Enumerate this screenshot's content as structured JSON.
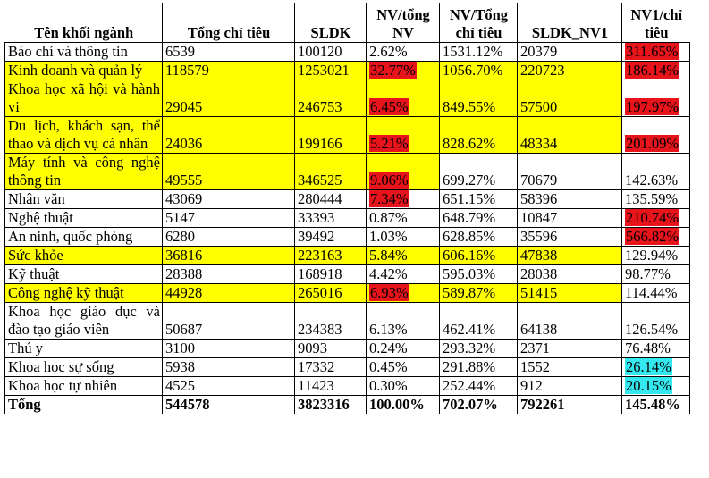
{
  "headers": [
    "Tên khối ngành",
    "Tổng chỉ tiêu",
    "SLDK",
    "NV/tổng NV",
    "NV/Tổng chỉ tiêu",
    "SLDK_NV1",
    "NV1/chỉ tiêu"
  ],
  "rows": [
    {
      "cells": [
        "Báo chí và thông tin",
        "6539",
        "100120",
        "2.62%",
        "1531.12%",
        "20379",
        "311.65%"
      ],
      "bg": "",
      "hl": {
        "6": "red"
      }
    },
    {
      "cells": [
        "Kinh doanh và quản lý",
        "118579",
        "1253021",
        "32.77%",
        "1056.70%",
        "220723",
        "186.14%"
      ],
      "bg": "yellow",
      "hl": {
        "3": "red",
        "6": "red"
      }
    },
    {
      "cells": [
        "Khoa học xã hội và hành vi",
        "29045",
        "246753",
        "6.45%",
        "849.55%",
        "57500",
        "197.97%"
      ],
      "bg": "yellow",
      "hl": {
        "3": "red",
        "6": "red"
      }
    },
    {
      "cells": [
        "Du lịch, khách sạn, thể thao và dịch vụ cá nhân",
        "24036",
        "199166",
        "5.21%",
        "828.62%",
        "48334",
        "201.09%"
      ],
      "bg": "yellow",
      "hl": {
        "3": "red",
        "6": "red"
      }
    },
    {
      "cells": [
        "Máy tính và công nghệ thông tin",
        "49555",
        "346525",
        "9.06%",
        "699.27%",
        "70679",
        "142.63%"
      ],
      "bg": "yellow-first",
      "hl": {
        "3": "red"
      }
    },
    {
      "cells": [
        "Nhân văn",
        "43069",
        "280444",
        "7.34%",
        "651.15%",
        "58396",
        "135.59%"
      ],
      "bg": "",
      "hl": {
        "3": "red"
      }
    },
    {
      "cells": [
        "Nghệ thuật",
        "5147",
        "33393",
        "0.87%",
        "648.79%",
        "10847",
        "210.74%"
      ],
      "bg": "",
      "hl": {
        "6": "red"
      }
    },
    {
      "cells": [
        "An ninh, quốc phòng",
        "6280",
        "39492",
        "1.03%",
        "628.85%",
        "35596",
        "566.82%"
      ],
      "bg": "",
      "hl": {
        "6": "red"
      }
    },
    {
      "cells": [
        "Sức khỏe",
        "36816",
        "223163",
        "5.84%",
        "606.16%",
        "47838",
        "129.94%"
      ],
      "bg": "yellow",
      "hl": {}
    },
    {
      "cells": [
        "Kỹ thuật",
        "28388",
        "168918",
        "4.42%",
        "595.03%",
        "28038",
        "98.77%"
      ],
      "bg": "",
      "hl": {}
    },
    {
      "cells": [
        "Công nghệ kỹ thuật",
        "44928",
        "265016",
        "6.93%",
        "589.87%",
        "51415",
        "114.44%"
      ],
      "bg": "yellow",
      "hl": {
        "3": "red"
      }
    },
    {
      "cells": [
        "Khoa học giáo dục và đào tạo giáo viên",
        "50687",
        "234383",
        "6.13%",
        "462.41%",
        "64138",
        "126.54%"
      ],
      "bg": "",
      "hl": {}
    },
    {
      "cells": [
        "Thú y",
        "3100",
        "9093",
        "0.24%",
        "293.32%",
        "2371",
        "76.48%"
      ],
      "bg": "",
      "hl": {}
    },
    {
      "cells": [
        "Khoa học sự sống",
        "5938",
        "17332",
        "0.45%",
        "291.88%",
        "1552",
        "26.14%"
      ],
      "bg": "",
      "hl": {
        "6": "cyan"
      }
    },
    {
      "cells": [
        "Khoa học tự nhiên",
        "4525",
        "11423",
        "0.30%",
        "252.44%",
        "912",
        "20.15%"
      ],
      "bg": "",
      "hl": {
        "6": "cyan"
      }
    },
    {
      "cells": [
        "Tổng",
        "544578",
        "3823316",
        "100.00%",
        "702.07%",
        "792261",
        "145.48%"
      ],
      "bg": "",
      "hl": {},
      "total": true
    }
  ]
}
